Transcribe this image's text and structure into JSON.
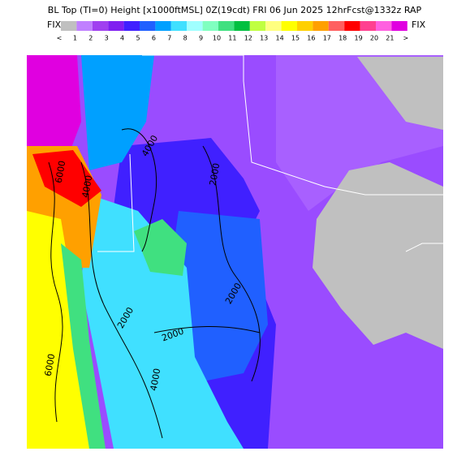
{
  "header": {
    "title": "BL Top (TI=0) Height [x1000ftMSL] 0Z(19cdt) FRI 06 Jun 2025 12hrFcst@1332z RAP"
  },
  "colorbar": {
    "left_label": "FIX",
    "right_label": "FIX",
    "labels": [
      "<",
      "1",
      "2",
      "3",
      "4",
      "5",
      "6",
      "7",
      "8",
      "9",
      "10",
      "11",
      "12",
      "13",
      "14",
      "15",
      "16",
      "17",
      "18",
      "19",
      "20",
      "21",
      ">"
    ],
    "colors": [
      "#c0c0c0",
      "#c080ff",
      "#a040f0",
      "#8020f0",
      "#4020ff",
      "#2060ff",
      "#00a0ff",
      "#40e0ff",
      "#a0ffff",
      "#80ffc0",
      "#40e080",
      "#00c040",
      "#c0ff40",
      "#ffff80",
      "#ffff00",
      "#ffd000",
      "#ffa000",
      "#ff6060",
      "#ff0000",
      "#ff4090",
      "#ff60e0",
      "#e000e0"
    ]
  },
  "map": {
    "contour_labels": [
      "6000",
      "4000",
      "4000",
      "2000",
      "2000",
      "2000",
      "2000",
      "4000",
      "6000"
    ]
  }
}
